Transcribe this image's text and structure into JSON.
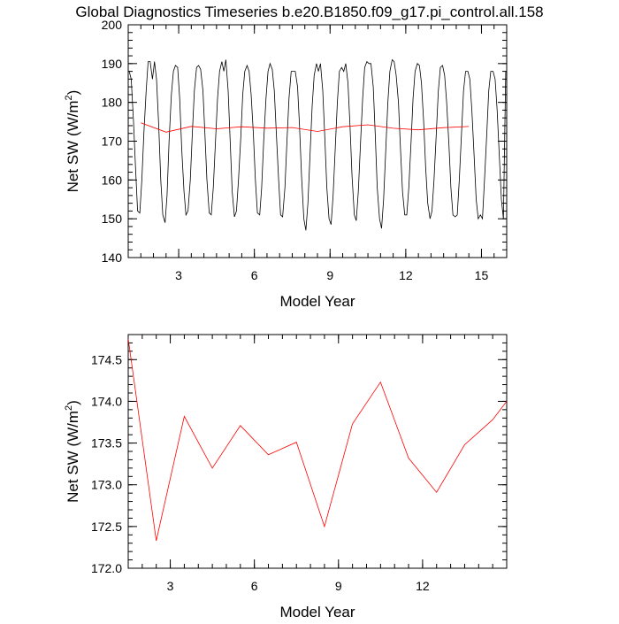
{
  "figure": {
    "title": "Global Diagnostics Timeseries b.e20.B1850.f09_g17.pi_control.all.158"
  },
  "chart_data": [
    {
      "type": "line",
      "xlabel": "Model Year",
      "ylabel": "Net SW (W/m",
      "ylabel_superscript": "2",
      "ylabel_suffix": ")",
      "xlim": [
        1.0,
        16.0
      ],
      "ylim": [
        140,
        200
      ],
      "xticks": [
        3,
        6,
        9,
        12,
        15
      ],
      "yticks": [
        140,
        150,
        160,
        170,
        180,
        190,
        200
      ],
      "grid": false,
      "series": [
        {
          "color": "#000000",
          "x": [
            1.04,
            1.12,
            1.21,
            1.29,
            1.37,
            1.46,
            1.54,
            1.62,
            1.71,
            1.79,
            1.87,
            1.96,
            2.04,
            2.12,
            2.21,
            2.29,
            2.37,
            2.46,
            2.54,
            2.62,
            2.71,
            2.79,
            2.87,
            2.96,
            3.04,
            3.12,
            3.21,
            3.29,
            3.37,
            3.46,
            3.54,
            3.62,
            3.71,
            3.79,
            3.87,
            3.96,
            4.04,
            4.12,
            4.21,
            4.29,
            4.37,
            4.46,
            4.54,
            4.62,
            4.71,
            4.79,
            4.87,
            4.96,
            5.04,
            5.12,
            5.21,
            5.29,
            5.37,
            5.46,
            5.54,
            5.62,
            5.71,
            5.79,
            5.87,
            5.96,
            6.04,
            6.12,
            6.21,
            6.29,
            6.37,
            6.46,
            6.54,
            6.62,
            6.71,
            6.79,
            6.87,
            6.96,
            7.04,
            7.12,
            7.21,
            7.29,
            7.37,
            7.46,
            7.54,
            7.62,
            7.71,
            7.79,
            7.87,
            7.96,
            8.04,
            8.12,
            8.21,
            8.29,
            8.37,
            8.46,
            8.54,
            8.62,
            8.71,
            8.79,
            8.87,
            8.96,
            9.04,
            9.12,
            9.21,
            9.29,
            9.37,
            9.46,
            9.54,
            9.62,
            9.71,
            9.79,
            9.87,
            9.96,
            10.04,
            10.12,
            10.21,
            10.29,
            10.37,
            10.46,
            10.54,
            10.62,
            10.71,
            10.79,
            10.87,
            10.96,
            11.04,
            11.12,
            11.21,
            11.29,
            11.37,
            11.46,
            11.54,
            11.62,
            11.71,
            11.79,
            11.87,
            11.96,
            12.04,
            12.12,
            12.21,
            12.29,
            12.37,
            12.46,
            12.54,
            12.62,
            12.71,
            12.79,
            12.87,
            12.96,
            13.04,
            13.12,
            13.21,
            13.29,
            13.37,
            13.46,
            13.54,
            13.62,
            13.71,
            13.79,
            13.87,
            13.96,
            14.04,
            14.12,
            14.21,
            14.29,
            14.37,
            14.46,
            14.54,
            14.62,
            14.71,
            14.79,
            14.87,
            14.96,
            15.04,
            15.12,
            15.21,
            15.29,
            15.37,
            15.46,
            15.54,
            15.62,
            15.71,
            15.79,
            15.87,
            15.96
          ],
          "values": [
            188.0,
            186.0,
            175.0,
            163.0,
            152.0,
            151.5,
            160.0,
            172.0,
            183.0,
            190.5,
            190.5,
            186.0,
            190.5,
            186.0,
            174.0,
            160.0,
            151.0,
            149.0,
            156.0,
            170.0,
            182.0,
            188.0,
            189.5,
            189.0,
            181.0,
            168.0,
            157.0,
            151.0,
            152.0,
            160.0,
            172.0,
            183.0,
            189.0,
            189.5,
            188.5,
            183.0,
            172.0,
            160.0,
            151.5,
            151.0,
            158.0,
            170.0,
            181.0,
            188.0,
            190.5,
            188.0,
            191.0,
            183.0,
            170.0,
            157.0,
            150.5,
            152.0,
            160.0,
            171.0,
            182.0,
            188.0,
            189.5,
            188.0,
            182.0,
            172.0,
            160.0,
            151.5,
            151.0,
            158.0,
            170.0,
            181.0,
            188.0,
            190.0,
            188.5,
            183.0,
            172.0,
            160.0,
            151.0,
            150.5,
            158.0,
            170.0,
            181.0,
            188.0,
            188.0,
            188.0,
            184.0,
            174.0,
            161.0,
            150.0,
            147.0,
            154.0,
            167.0,
            179.0,
            187.0,
            190.0,
            188.0,
            190.0,
            183.0,
            171.0,
            158.0,
            150.0,
            148.5,
            156.0,
            169.0,
            180.0,
            188.0,
            189.0,
            188.0,
            190.0,
            185.0,
            174.0,
            161.0,
            151.0,
            149.5,
            157.0,
            170.0,
            181.0,
            189.0,
            190.5,
            190.0,
            190.0,
            184.0,
            172.0,
            158.0,
            150.0,
            147.5,
            155.0,
            168.0,
            180.0,
            188.0,
            191.0,
            190.5,
            187.0,
            180.0,
            168.0,
            157.0,
            151.0,
            151.0,
            158.0,
            170.0,
            181.0,
            188.0,
            190.0,
            189.5,
            185.0,
            175.0,
            163.0,
            154.0,
            150.0,
            152.0,
            160.0,
            172.0,
            183.0,
            189.0,
            189.5,
            187.0,
            180.0,
            169.0,
            158.0,
            151.0,
            150.5,
            151.0,
            160.0,
            172.0,
            183.0,
            188.0,
            188.0,
            186.0,
            178.0,
            166.0,
            155.0,
            150.0,
            151.0,
            150.0,
            160.0,
            172.0,
            183.0,
            188.0,
            188.0,
            186.0,
            178.0,
            166.0,
            155.0,
            150.0,
            188.0
          ]
        },
        {
          "color": "#ff0000",
          "x": [
            1.5,
            2.5,
            3.5,
            4.5,
            5.5,
            6.5,
            7.5,
            8.5,
            9.5,
            10.5,
            11.5,
            12.5,
            13.5,
            14.5
          ],
          "values": [
            174.75,
            172.33,
            173.82,
            173.2,
            173.71,
            173.36,
            173.51,
            172.5,
            173.73,
            174.23,
            173.32,
            172.91,
            173.48,
            173.78
          ]
        }
      ]
    },
    {
      "type": "line",
      "xlabel": "Model Year",
      "ylabel": "Net SW (W/m",
      "ylabel_superscript": "2",
      "ylabel_suffix": ")",
      "xlim": [
        1.5,
        15.0
      ],
      "ylim": [
        172.0,
        174.8
      ],
      "xticks": [
        3,
        6,
        9,
        12
      ],
      "yticks": [
        172.0,
        172.5,
        173.0,
        173.5,
        174.0,
        174.5
      ],
      "ytick_labels": [
        "172.0",
        "172.5",
        "173.0",
        "173.5",
        "174.0",
        "174.5"
      ],
      "grid": false,
      "series": [
        {
          "color": "#ff0000",
          "x": [
            1.5,
            2.5,
            3.5,
            4.5,
            5.5,
            6.5,
            7.5,
            8.5,
            9.5,
            10.5,
            11.5,
            12.5,
            13.5,
            14.5,
            15.0
          ],
          "values": [
            174.75,
            172.33,
            173.82,
            173.2,
            173.71,
            173.36,
            173.51,
            172.5,
            173.73,
            174.23,
            173.32,
            172.91,
            173.48,
            173.78,
            174.0
          ]
        }
      ]
    }
  ]
}
